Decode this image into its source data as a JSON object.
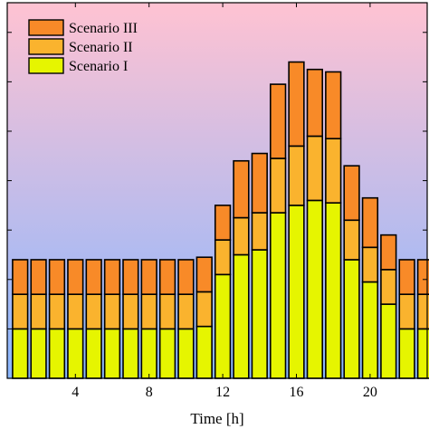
{
  "chart_data": {
    "type": "bar",
    "stacked": true,
    "xlabel": "Time [h]",
    "ylabel": "",
    "x": [
      1,
      2,
      3,
      4,
      5,
      6,
      7,
      8,
      9,
      10,
      11,
      12,
      13,
      14,
      15,
      16,
      17,
      18,
      19,
      20,
      21,
      22,
      23
    ],
    "xlim": [
      0.3,
      23.1
    ],
    "ylim": [
      0,
      7.6
    ],
    "xticks": [
      4,
      8,
      12,
      16,
      20
    ],
    "series": [
      {
        "name": "Scenario I",
        "color": "#e6f500",
        "values": [
          1.0,
          1.0,
          1.0,
          1.0,
          1.0,
          1.0,
          1.0,
          1.0,
          1.0,
          1.0,
          1.05,
          2.1,
          2.5,
          2.6,
          3.35,
          3.5,
          3.6,
          3.55,
          2.4,
          1.95,
          1.5,
          1.0,
          1.0
        ]
      },
      {
        "name": "Scenario II",
        "color": "#fab32e",
        "values": [
          0.7,
          0.7,
          0.7,
          0.7,
          0.7,
          0.7,
          0.7,
          0.7,
          0.7,
          0.7,
          0.7,
          0.7,
          0.75,
          0.75,
          1.1,
          1.2,
          1.3,
          1.3,
          0.8,
          0.7,
          0.7,
          0.7,
          0.7
        ]
      },
      {
        "name": "Scenario III",
        "color": "#f88a28",
        "values": [
          0.7,
          0.7,
          0.7,
          0.7,
          0.7,
          0.7,
          0.7,
          0.7,
          0.7,
          0.7,
          0.7,
          0.7,
          1.15,
          1.2,
          1.5,
          1.7,
          1.35,
          1.35,
          1.1,
          1.0,
          0.7,
          0.7,
          0.7
        ]
      }
    ],
    "legend": {
      "position": "top-left",
      "order": [
        "Scenario III",
        "Scenario II",
        "Scenario I"
      ]
    },
    "background_gradient": [
      "#ffc2d2",
      "#8ab7ff"
    ],
    "grid": false
  }
}
